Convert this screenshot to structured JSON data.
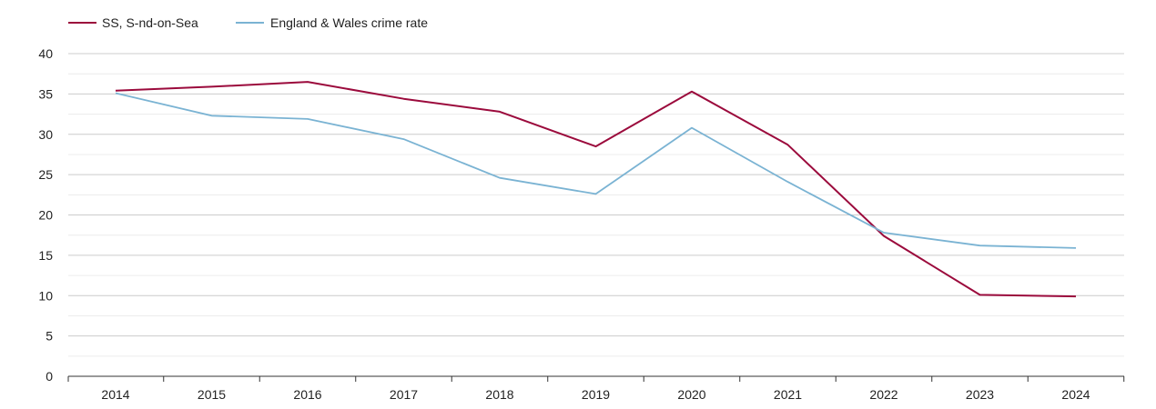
{
  "chart_data": {
    "type": "line",
    "categories": [
      "2014",
      "2015",
      "2016",
      "2017",
      "2018",
      "2019",
      "2020",
      "2021",
      "2022",
      "2023",
      "2024"
    ],
    "series": [
      {
        "name": "SS, S-nd-on-Sea",
        "color": "#9b0a3c",
        "values": [
          35.4,
          35.9,
          36.5,
          34.4,
          32.8,
          28.5,
          35.3,
          28.7,
          17.4,
          10.1,
          9.9
        ]
      },
      {
        "name": "England & Wales crime rate",
        "color": "#7ab3d3",
        "values": [
          35.1,
          32.3,
          31.9,
          29.4,
          24.6,
          22.6,
          30.8,
          24.1,
          17.8,
          16.2,
          15.9
        ]
      }
    ],
    "yticks": [
      "0",
      "5",
      "10",
      "15",
      "20",
      "25",
      "30",
      "35",
      "40"
    ],
    "ylim": [
      0,
      40
    ],
    "grid": true,
    "legend_position": "top-left"
  }
}
